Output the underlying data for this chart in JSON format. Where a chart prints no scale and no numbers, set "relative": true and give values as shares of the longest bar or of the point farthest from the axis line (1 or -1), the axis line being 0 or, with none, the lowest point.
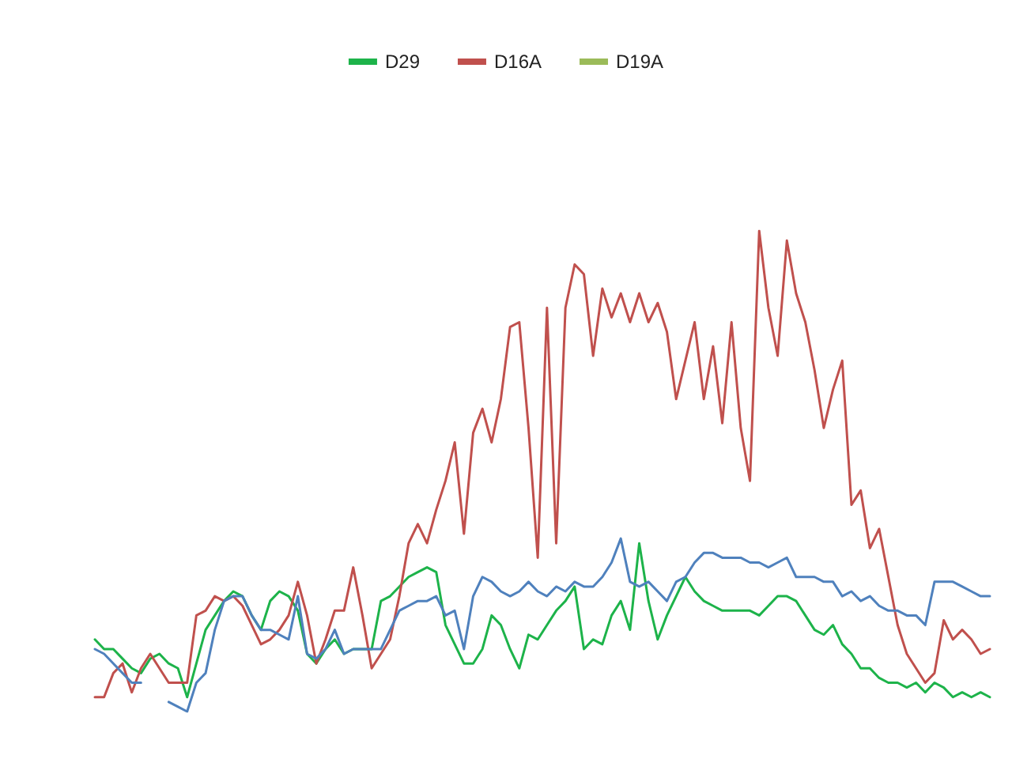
{
  "chart_data": {
    "type": "line",
    "relative": true,
    "legend": "top",
    "grid": false,
    "marker": "none",
    "line_style": "solid",
    "categories": [
      null,
      null,
      null,
      null,
      null,
      null,
      null,
      null,
      null,
      null,
      null,
      null,
      null,
      null,
      null,
      null,
      null,
      null,
      null,
      null,
      null,
      null,
      null,
      null,
      null,
      null,
      null,
      null,
      null,
      null,
      null,
      null,
      null,
      null,
      null,
      null,
      null,
      null,
      null,
      null,
      null,
      null,
      null,
      null,
      null,
      null,
      null,
      null,
      null,
      null,
      null,
      null,
      null,
      null,
      null,
      null,
      null,
      null,
      null,
      null,
      null,
      null,
      null,
      null,
      null,
      null,
      null,
      null,
      null,
      null,
      null,
      null,
      null,
      null,
      null,
      null,
      null,
      null,
      null,
      null,
      null,
      null,
      null,
      null,
      null,
      null,
      null,
      null,
      null,
      null,
      null,
      null,
      null,
      null,
      null,
      null,
      null,
      null
    ],
    "series": [
      {
        "name": "D29",
        "color": "#1db34a",
        "values": [
          0.15,
          0.13,
          0.13,
          0.11,
          0.09,
          0.08,
          0.11,
          0.12,
          0.1,
          0.09,
          0.03,
          0.1,
          0.17,
          0.2,
          0.23,
          0.25,
          0.24,
          0.2,
          0.17,
          0.23,
          0.25,
          0.24,
          0.21,
          0.12,
          0.1,
          0.13,
          0.15,
          0.12,
          0.13,
          0.13,
          0.13,
          0.23,
          0.24,
          0.26,
          0.28,
          0.29,
          0.3,
          0.29,
          0.18,
          0.14,
          0.1,
          0.1,
          0.13,
          0.2,
          0.18,
          0.13,
          0.09,
          0.16,
          0.15,
          0.18,
          0.21,
          0.23,
          0.26,
          0.13,
          0.15,
          0.14,
          0.2,
          0.23,
          0.17,
          0.35,
          0.23,
          0.15,
          0.2,
          0.24,
          0.28,
          0.25,
          0.23,
          0.22,
          0.21,
          0.21,
          0.21,
          0.21,
          0.2,
          0.22,
          0.24,
          0.24,
          0.23,
          0.2,
          0.17,
          0.16,
          0.18,
          0.14,
          0.12,
          0.09,
          0.09,
          0.07,
          0.06,
          0.06,
          0.05,
          0.06,
          0.04,
          0.06,
          0.05,
          0.03,
          0.04,
          0.03,
          0.04,
          0.03
        ]
      },
      {
        "name": "D16A",
        "color": "#c0504d",
        "values": [
          0.03,
          0.03,
          0.08,
          0.1,
          0.04,
          0.09,
          0.12,
          0.09,
          0.06,
          0.06,
          0.06,
          0.2,
          0.21,
          0.24,
          0.23,
          0.24,
          0.22,
          0.18,
          0.14,
          0.15,
          0.17,
          0.2,
          0.27,
          0.2,
          0.1,
          0.15,
          0.21,
          0.21,
          0.3,
          0.2,
          0.09,
          0.12,
          0.15,
          0.24,
          0.35,
          0.39,
          0.35,
          0.42,
          0.48,
          0.56,
          0.37,
          0.58,
          0.63,
          0.56,
          0.65,
          0.8,
          0.81,
          0.59,
          0.32,
          0.84,
          0.35,
          0.84,
          0.93,
          0.91,
          0.74,
          0.88,
          0.82,
          0.87,
          0.81,
          0.87,
          0.81,
          0.85,
          0.79,
          0.65,
          0.73,
          0.81,
          0.65,
          0.76,
          0.6,
          0.81,
          0.59,
          0.48,
          1,
          0.84,
          0.74,
          0.98,
          0.87,
          0.81,
          0.71,
          0.59,
          0.67,
          0.73,
          0.43,
          0.46,
          0.34,
          0.38,
          0.28,
          0.18,
          0.12,
          0.09,
          0.06,
          0.08,
          0.19,
          0.15,
          0.17,
          0.15,
          0.12,
          0.13
        ]
      },
      {
        "name": "D19A",
        "color": "#9bbb59",
        "values": [
          null,
          null,
          null,
          null,
          null,
          null,
          null,
          null,
          null,
          null,
          null,
          null,
          null,
          null,
          null,
          null,
          null,
          null,
          null,
          null,
          null,
          null,
          null,
          null,
          null,
          null,
          null,
          null,
          null,
          null,
          null,
          null,
          null,
          null,
          null,
          null,
          null,
          null,
          null,
          null,
          null,
          null,
          null,
          null,
          null,
          null,
          null,
          null,
          null,
          null,
          null,
          null,
          null,
          null,
          null,
          null,
          null,
          null,
          null,
          null,
          null,
          null,
          null,
          null,
          null,
          null,
          null,
          null,
          null,
          null,
          null,
          null,
          null,
          null,
          null,
          null,
          null,
          null,
          null,
          null,
          null,
          null,
          null,
          null,
          null,
          null,
          null,
          null,
          null,
          null,
          null,
          null,
          null,
          null,
          null,
          null,
          null,
          null
        ]
      },
      {
        "color": "#4f81bd",
        "values": [
          0.13,
          0.12,
          0.1,
          0.08,
          0.06,
          0.06,
          null,
          null,
          0.02,
          0.01,
          0,
          0.06,
          0.08,
          0.17,
          0.23,
          0.24,
          0.24,
          0.2,
          0.17,
          0.17,
          0.16,
          0.15,
          0.24,
          0.12,
          0.11,
          0.13,
          0.17,
          0.12,
          0.13,
          0.13,
          0.13,
          0.13,
          0.17,
          0.21,
          0.22,
          0.23,
          0.23,
          0.24,
          0.2,
          0.21,
          0.13,
          0.24,
          0.28,
          0.27,
          0.25,
          0.24,
          0.25,
          0.27,
          0.25,
          0.24,
          0.26,
          0.25,
          0.27,
          0.26,
          0.26,
          0.28,
          0.31,
          0.36,
          0.27,
          0.26,
          0.27,
          0.25,
          0.23,
          0.27,
          0.28,
          0.31,
          0.33,
          0.33,
          0.32,
          0.32,
          0.32,
          0.31,
          0.31,
          0.3,
          0.31,
          0.32,
          0.28,
          0.28,
          0.28,
          0.27,
          0.27,
          0.24,
          0.25,
          0.23,
          0.24,
          0.22,
          0.21,
          0.21,
          0.2,
          0.2,
          0.18,
          0.27,
          0.27,
          0.27,
          0.26,
          0.25,
          0.24,
          0.24
        ]
      }
    ]
  }
}
